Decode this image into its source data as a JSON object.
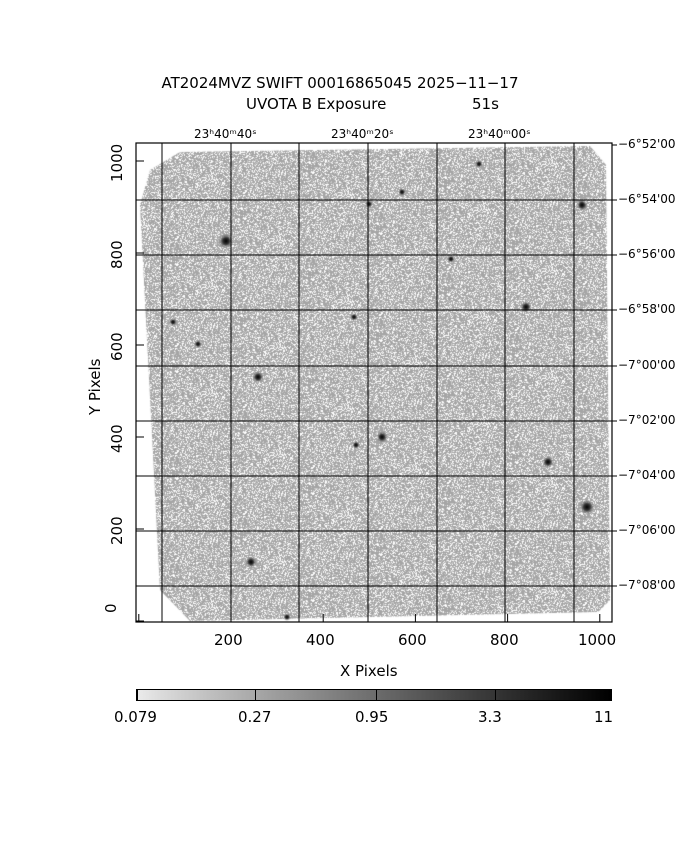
{
  "title": "AT2024MVZ SWIFT 00016865045 2025−11−17",
  "subtitle_left": "UVOTA B Exposure",
  "subtitle_right": "51s",
  "chart_data": {
    "type": "heatmap",
    "title": "AT2024MVZ SWIFT 00016865045 2025−11−17",
    "subtitle": "UVOTA B Exposure 51s",
    "xlabel": "X Pixels",
    "ylabel": "Y Pixels",
    "xlim": [
      0,
      1030
    ],
    "ylim": [
      0,
      1040
    ],
    "x_ticks": [
      "200",
      "400",
      "600",
      "800",
      "1000"
    ],
    "y_ticks": [
      "0",
      "200",
      "400",
      "600",
      "800",
      "1000"
    ],
    "top_axis_ticks": [
      "23ʰ40ᵐ40ˢ",
      "23ʰ40ᵐ20ˢ",
      "23ʰ40ᵐ00ˢ"
    ],
    "right_axis_ticks": [
      "−6°52'00",
      "−6°54'00",
      "−6°56'00",
      "−6°58'00",
      "−7°00'00",
      "−7°02'00",
      "−7°04'00",
      "−7°06'00",
      "−7°08'00"
    ],
    "grid": true,
    "colormap": "grayscale (white low, black high), log scale",
    "colorbar": {
      "position": "bottom",
      "tick_labels": [
        "0.079",
        "0.27",
        "0.95",
        "3.3",
        "11"
      ],
      "range": [
        0.079,
        11
      ]
    }
  }
}
